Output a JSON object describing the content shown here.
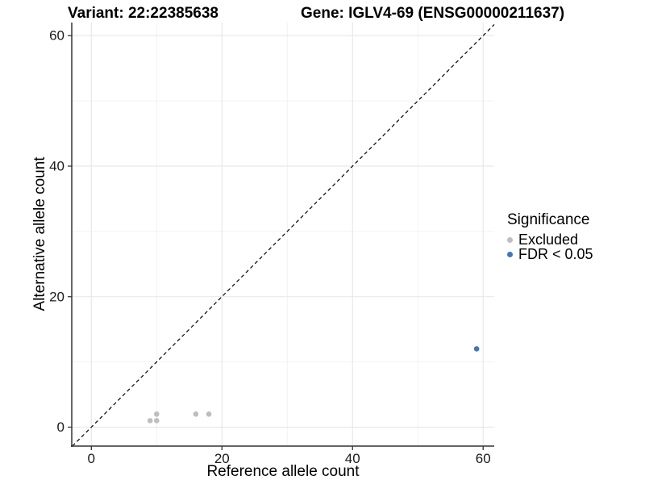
{
  "page": {
    "background": "#ffffff"
  },
  "chart_data": {
    "type": "scatter",
    "title_left": "Variant: 22:22385638",
    "title_right": "Gene: IGLV4-69 (ENSG00000211637)",
    "xlabel": "Reference allele count",
    "ylabel": "Alternative allele count",
    "xlim": [
      -3,
      61.7
    ],
    "ylim": [
      -2.9,
      62
    ],
    "x_ticks": [
      0,
      20,
      40,
      60
    ],
    "y_ticks": [
      0,
      20,
      40,
      60
    ],
    "x_minor_ticks": [
      10,
      30,
      50
    ],
    "y_minor_ticks": [
      10,
      30,
      50
    ],
    "grid": "major+minor",
    "identity_line": {
      "equation": "y = x",
      "style": "dashed",
      "color": "#000000"
    },
    "series": [
      {
        "name": "Excluded",
        "color": "#BEBEBE",
        "points": [
          [
            9,
            1
          ],
          [
            10,
            1
          ],
          [
            10,
            2
          ],
          [
            16,
            2
          ],
          [
            18,
            2
          ]
        ]
      },
      {
        "name": "FDR < 0.05",
        "color": "#4575B4",
        "points": [
          [
            59,
            12
          ]
        ]
      }
    ],
    "legend": {
      "title": "Significance",
      "position": "right",
      "items": [
        {
          "label": "Excluded",
          "color": "#BEBEBE"
        },
        {
          "label": "FDR < 0.05",
          "color": "#4575B4"
        }
      ]
    },
    "colors": {
      "grid_major": "#e6e6e6",
      "grid_minor": "#f2f2f2",
      "axis_line": "#333333",
      "tick_mark": "#333333",
      "tick_text": "#1a1a1a"
    }
  }
}
